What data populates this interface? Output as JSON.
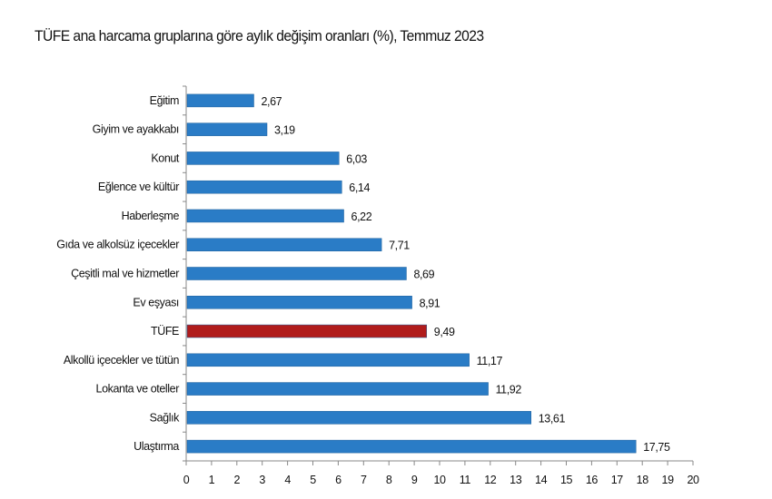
{
  "chart_data": {
    "type": "bar",
    "orientation": "horizontal",
    "title": "TÜFE ana harcama gruplarına göre aylık değişim oranları (%), Temmuz 2023",
    "categories": [
      "Eğitim",
      "Giyim ve ayakkabı",
      "Konut",
      "Eğlence ve kültür",
      "Haberleşme",
      "Gıda ve alkolsüz içecekler",
      "Çeşitli mal ve hizmetler",
      "Ev eşyası",
      "TÜFE",
      "Alkollü içecekler ve tütün",
      "Lokanta ve oteller",
      "Sağlık",
      "Ulaştırma"
    ],
    "values": [
      2.67,
      3.19,
      6.03,
      6.14,
      6.22,
      7.71,
      8.69,
      8.91,
      9.49,
      11.17,
      11.92,
      13.61,
      17.75
    ],
    "value_labels": [
      "2,67",
      "3,19",
      "6,03",
      "6,14",
      "6,22",
      "7,71",
      "8,69",
      "8,91",
      "9,49",
      "11,17",
      "11,92",
      "13,61",
      "17,75"
    ],
    "xlim": [
      0,
      20
    ],
    "xticks": [
      "0",
      "1",
      "2",
      "3",
      "4",
      "5",
      "6",
      "7",
      "8",
      "9",
      "10",
      "11",
      "12",
      "13",
      "14",
      "15",
      "16",
      "17",
      "18",
      "19",
      "20"
    ],
    "grid": false,
    "colors": {
      "default": "#2a7cc6",
      "highlight": "#b01c1c",
      "highlight_category": "TÜFE"
    }
  }
}
